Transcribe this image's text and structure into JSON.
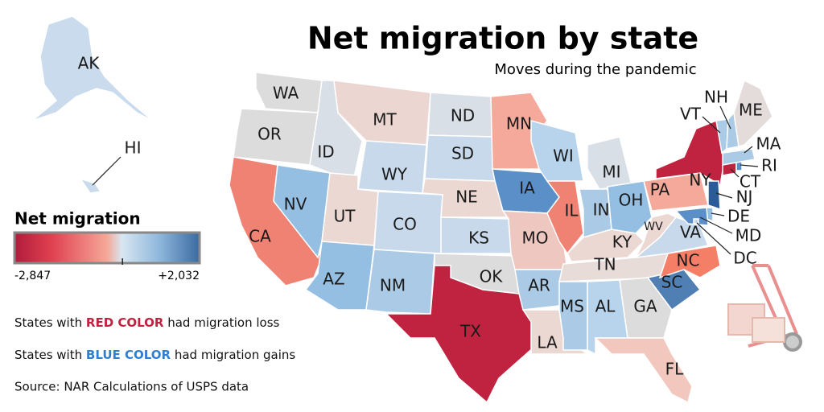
{
  "header": {
    "title": "Net migration by state",
    "subtitle": "Moves during the pandemic"
  },
  "states": [
    {
      "code": "AK",
      "color": "#c9dbec"
    },
    {
      "code": "HI",
      "color": "#c9dbec"
    },
    {
      "code": "WA",
      "color": "#dcdcdc"
    },
    {
      "code": "OR",
      "color": "#dcdcdc"
    },
    {
      "code": "CA",
      "color": "#f08274"
    },
    {
      "code": "NV",
      "color": "#94bfe2"
    },
    {
      "code": "ID",
      "color": "#d9dfe7"
    },
    {
      "code": "MT",
      "color": "#ecd6d1"
    },
    {
      "code": "WY",
      "color": "#c7d9ea"
    },
    {
      "code": "UT",
      "color": "#ecd8d3"
    },
    {
      "code": "AZ",
      "color": "#94bfe2"
    },
    {
      "code": "CO",
      "color": "#c7d9ea"
    },
    {
      "code": "NM",
      "color": "#abcae6"
    },
    {
      "code": "ND",
      "color": "#d9dfe7"
    },
    {
      "code": "SD",
      "color": "#c7d9ea"
    },
    {
      "code": "NE",
      "color": "#ecd8d3"
    },
    {
      "code": "KS",
      "color": "#c7d9ea"
    },
    {
      "code": "OK",
      "color": "#dcdcdc"
    },
    {
      "code": "TX",
      "color": "#c0233f"
    },
    {
      "code": "MN",
      "color": "#f4a99b"
    },
    {
      "code": "IA",
      "color": "#5b8fc8"
    },
    {
      "code": "MO",
      "color": "#eec7c1"
    },
    {
      "code": "AR",
      "color": "#abcae6"
    },
    {
      "code": "LA",
      "color": "#ecd8d3"
    },
    {
      "code": "WI",
      "color": "#b8d3ec"
    },
    {
      "code": "IL",
      "color": "#f08274"
    },
    {
      "code": "MI",
      "color": "#d9dfe7"
    },
    {
      "code": "IN",
      "color": "#abcae6"
    },
    {
      "code": "OH",
      "color": "#94bfe2"
    },
    {
      "code": "KY",
      "color": "#ecd8d3"
    },
    {
      "code": "TN",
      "color": "#e8dcd8"
    },
    {
      "code": "MS",
      "color": "#abcae6"
    },
    {
      "code": "AL",
      "color": "#b8d3ec"
    },
    {
      "code": "GA",
      "color": "#dcdcdc"
    },
    {
      "code": "FL",
      "color": "#f2c7be"
    },
    {
      "code": "SC",
      "color": "#4f7fb3"
    },
    {
      "code": "NC",
      "color": "#f57e66"
    },
    {
      "code": "VA",
      "color": "#c7d9ea"
    },
    {
      "code": "WV",
      "color": "#ecd8d3"
    },
    {
      "code": "PA",
      "color": "#f4a99b"
    },
    {
      "code": "NY",
      "color": "#c0233f"
    },
    {
      "code": "NJ",
      "color": "#2c5b9a"
    },
    {
      "code": "DE",
      "color": "#94bfe2"
    },
    {
      "code": "MD",
      "color": "#5b8fc8"
    },
    {
      "code": "DC",
      "color": "#c7d9ea"
    },
    {
      "code": "CT",
      "color": "#c0233f"
    },
    {
      "code": "RI",
      "color": "#5b8fc8"
    },
    {
      "code": "MA",
      "color": "#abcae6"
    },
    {
      "code": "VT",
      "color": "#abcae6"
    },
    {
      "code": "NH",
      "color": "#abcae6"
    },
    {
      "code": "ME",
      "color": "#e4dcda"
    }
  ],
  "legend": {
    "title": "Net migration",
    "min": {
      "value": -2847,
      "label": "-2,847"
    },
    "max": {
      "value": 2032,
      "label": "+2,032"
    },
    "ticks": [
      0
    ],
    "gradient": [
      "#b01c3c",
      "#e04050",
      "#f5a898",
      "#d8e6f2",
      "#8fb8dc",
      "#3a6aa0"
    ]
  },
  "notes": [
    {
      "before": "States with ",
      "highlight": "RED COLOR",
      "after": " had migration loss",
      "color": "#c0233f"
    },
    {
      "before": "States with ",
      "highlight": "BLUE COLOR",
      "after": " had migration gains",
      "color": "#2f7fd0"
    }
  ],
  "source": "Source: NAR Calculations of USPS data"
}
